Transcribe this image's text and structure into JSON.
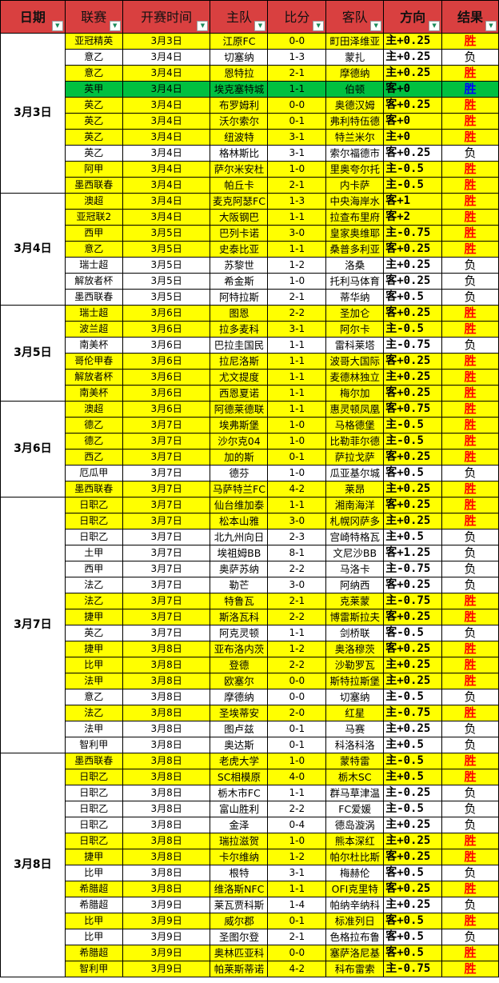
{
  "colors": {
    "header": "#D94040",
    "yellow": "#FFFF00",
    "white": "#FFFFFF",
    "green": "#00C040",
    "win": "#FF0000",
    "win_green_row": "#0000FF",
    "lose": "#000000"
  },
  "headers": [
    "日期",
    "联赛",
    "开赛时间",
    "主队",
    "比分",
    "客队",
    "方向",
    "结果"
  ],
  "filter_icon": "dropdown-arrow-icon",
  "groups": [
    {
      "date": "3月3日",
      "rows": [
        [
          "亚冠精英",
          "3月3日",
          "江原FC",
          "0-0",
          "町田泽维亚",
          "主+0.25",
          "胜",
          "y"
        ],
        [
          "意乙",
          "3月4日",
          "切塞纳",
          "1-3",
          "蒙扎",
          "主+0.25",
          "负",
          "w"
        ],
        [
          "意乙",
          "3月4日",
          "恩特拉",
          "2-1",
          "摩德纳",
          "主+0.25",
          "胜",
          "y"
        ],
        [
          "英甲",
          "3月4日",
          "埃克塞特城",
          "1-1",
          "伯顿",
          "客+0",
          "胜",
          "g"
        ],
        [
          "英乙",
          "3月4日",
          "布罗姆利",
          "0-0",
          "奥德汉姆",
          "客+0.25",
          "胜",
          "y"
        ],
        [
          "英乙",
          "3月4日",
          "沃尔索尔",
          "0-1",
          "弗利特伍德",
          "客+0",
          "胜",
          "y"
        ],
        [
          "英乙",
          "3月4日",
          "纽波特",
          "3-1",
          "特兰米尔",
          "主+0",
          "胜",
          "y"
        ],
        [
          "英乙",
          "3月4日",
          "格林斯比",
          "3-1",
          "索尔福德市",
          "客+0.25",
          "负",
          "w"
        ],
        [
          "阿甲",
          "3月4日",
          "萨尔米安杜",
          "1-0",
          "里奥夸尔托",
          "主-0.5",
          "胜",
          "y"
        ],
        [
          "墨西联春",
          "3月4日",
          "帕丘卡",
          "2-1",
          "内卡萨",
          "主-0.5",
          "胜",
          "y"
        ]
      ]
    },
    {
      "date": "3月4日",
      "rows": [
        [
          "澳超",
          "3月4日",
          "麦克阿瑟FC",
          "1-3",
          "中央海岸水",
          "客+1",
          "胜",
          "y"
        ],
        [
          "亚冠联2",
          "3月4日",
          "大阪钢巴",
          "1-1",
          "拉查布里府",
          "客+2",
          "胜",
          "y"
        ],
        [
          "西甲",
          "3月5日",
          "巴列卡诺",
          "3-0",
          "皇家奥维耶",
          "主-0.75",
          "胜",
          "y"
        ],
        [
          "意乙",
          "3月5日",
          "史泰比亚",
          "1-1",
          "桑普多利亚",
          "客+0.25",
          "胜",
          "y"
        ],
        [
          "瑞士超",
          "3月5日",
          "苏黎世",
          "1-2",
          "洛桑",
          "主+0.25",
          "负",
          "w"
        ],
        [
          "解放者杯",
          "3月5日",
          "希金斯",
          "1-0",
          "托利马体育",
          "客+0.25",
          "负",
          "w"
        ],
        [
          "墨西联春",
          "3月5日",
          "阿特拉斯",
          "2-1",
          "蒂华纳",
          "客+0.5",
          "负",
          "w"
        ]
      ]
    },
    {
      "date": "3月5日",
      "rows": [
        [
          "瑞士超",
          "3月6日",
          "图恩",
          "2-2",
          "圣加仑",
          "客+0.25",
          "胜",
          "y"
        ],
        [
          "波兰超",
          "3月6日",
          "拉多麦科",
          "3-1",
          "阿尔卡",
          "主-0.5",
          "胜",
          "y"
        ],
        [
          "南美杯",
          "3月6日",
          "巴拉圭国民",
          "1-1",
          "雷科莱塔",
          "主-0.75",
          "负",
          "w"
        ],
        [
          "哥伦甲春",
          "3月6日",
          "拉尼洛斯",
          "1-1",
          "波哥大国际",
          "客+0.25",
          "胜",
          "y"
        ],
        [
          "解放者杯",
          "3月6日",
          "尤文提度",
          "1-1",
          "麦德林独立",
          "主+0.25",
          "胜",
          "y"
        ],
        [
          "南美杯",
          "3月6日",
          "西恩夏诺",
          "1-1",
          "梅尔加",
          "客+0.25",
          "胜",
          "y"
        ]
      ]
    },
    {
      "date": "3月6日",
      "rows": [
        [
          "澳超",
          "3月6日",
          "阿德莱德联",
          "1-1",
          "惠灵顿凤凰",
          "客+0.75",
          "胜",
          "y"
        ],
        [
          "德乙",
          "3月7日",
          "埃弗斯堡",
          "1-0",
          "马格德堡",
          "主-0.5",
          "胜",
          "y"
        ],
        [
          "德乙",
          "3月7日",
          "沙尔克04",
          "1-0",
          "比勒菲尔德",
          "主-0.5",
          "胜",
          "y"
        ],
        [
          "西乙",
          "3月7日",
          "加的斯",
          "0-1",
          "萨拉戈萨",
          "客+0.25",
          "胜",
          "y"
        ],
        [
          "厄瓜甲",
          "3月7日",
          "德芬",
          "1-0",
          "瓜亚基尔城",
          "客+0.5",
          "负",
          "w"
        ],
        [
          "墨西联春",
          "3月7日",
          "马萨特兰FC",
          "4-2",
          "莱昂",
          "主+0.25",
          "胜",
          "y"
        ]
      ]
    },
    {
      "date": "3月7日",
      "rows": [
        [
          "日职乙",
          "3月7日",
          "仙台维加泰",
          "1-1",
          "湘南海洋",
          "客+0.25",
          "胜",
          "y"
        ],
        [
          "日职乙",
          "3月7日",
          "松本山雅",
          "3-0",
          "札幌冈萨多",
          "主+0.25",
          "胜",
          "y"
        ],
        [
          "日职乙",
          "3月7日",
          "北九州向日",
          "2-3",
          "宫崎特格瓦",
          "主+0.5",
          "负",
          "w"
        ],
        [
          "土甲",
          "3月7日",
          "埃祖姆BB",
          "8-1",
          "文尼沙BB",
          "客+1.25",
          "负",
          "w"
        ],
        [
          "西甲",
          "3月7日",
          "奥萨苏纳",
          "2-2",
          "马洛卡",
          "主-0.75",
          "负",
          "w"
        ],
        [
          "法乙",
          "3月7日",
          "勒芒",
          "3-0",
          "阿纳西",
          "客+0.25",
          "负",
          "w"
        ],
        [
          "法乙",
          "3月7日",
          "特鲁瓦",
          "2-1",
          "克莱蒙",
          "主-0.75",
          "胜",
          "y"
        ],
        [
          "捷甲",
          "3月7日",
          "斯洛瓦科",
          "2-2",
          "博雷斯拉夫",
          "客+0.25",
          "胜",
          "y"
        ],
        [
          "英乙",
          "3月7日",
          "阿克灵顿",
          "1-1",
          "剑桥联",
          "客-0.5",
          "负",
          "w"
        ],
        [
          "捷甲",
          "3月8日",
          "亚布洛内茨",
          "1-2",
          "奥洛穆茨",
          "客+0.25",
          "胜",
          "y"
        ],
        [
          "比甲",
          "3月8日",
          "登德",
          "2-2",
          "沙勒罗瓦",
          "主+0.25",
          "胜",
          "y"
        ],
        [
          "法甲",
          "3月8日",
          "欧塞尔",
          "0-0",
          "斯特拉斯堡",
          "主+0.25",
          "胜",
          "y"
        ],
        [
          "意乙",
          "3月8日",
          "摩德纳",
          "0-0",
          "切塞纳",
          "主-0.5",
          "负",
          "w"
        ],
        [
          "法乙",
          "3月8日",
          "圣埃蒂安",
          "2-0",
          "红星",
          "主-0.75",
          "胜",
          "y"
        ],
        [
          "法甲",
          "3月8日",
          "图卢兹",
          "0-1",
          "马赛",
          "主+0.25",
          "负",
          "w"
        ],
        [
          "智利甲",
          "3月8日",
          "奥达斯",
          "0-1",
          "科洛科洛",
          "主+0.5",
          "负",
          "w"
        ]
      ]
    },
    {
      "date": "3月8日",
      "rows": [
        [
          "墨西联春",
          "3月8日",
          "老虎大学",
          "1-0",
          "蒙特雷",
          "主-0.5",
          "胜",
          "y"
        ],
        [
          "日职乙",
          "3月8日",
          "SC相模原",
          "4-0",
          "栃木SC",
          "主+0.5",
          "胜",
          "y"
        ],
        [
          "日职乙",
          "3月8日",
          "栃木市FC",
          "1-1",
          "群马草津温",
          "主-0.25",
          "负",
          "w"
        ],
        [
          "日职乙",
          "3月8日",
          "富山胜利",
          "2-2",
          "FC爱媛",
          "主-0.5",
          "负",
          "w"
        ],
        [
          "日职乙",
          "3月8日",
          "金泽",
          "0-4",
          "德岛漩涡",
          "主+0.25",
          "负",
          "w"
        ],
        [
          "日职乙",
          "3月8日",
          "瑞拉滋贺",
          "1-0",
          "熊本深红",
          "主+0.25",
          "胜",
          "y"
        ],
        [
          "捷甲",
          "3月8日",
          "卡尔维纳",
          "1-2",
          "帕尔杜比斯",
          "客+0.25",
          "胜",
          "y"
        ],
        [
          "比甲",
          "3月8日",
          "根特",
          "3-1",
          "梅赫伦",
          "客+0.5",
          "负",
          "w"
        ],
        [
          "希腊超",
          "3月8日",
          "维洛斯NFC",
          "1-1",
          "OFI克里特",
          "客+0.25",
          "胜",
          "y"
        ],
        [
          "希腊超",
          "3月9日",
          "莱瓦贾科斯",
          "1-4",
          "帕纳辛纳科",
          "主+0.25",
          "负",
          "w"
        ],
        [
          "比甲",
          "3月9日",
          "威尔郡",
          "0-1",
          "标准列日",
          "客+0.5",
          "胜",
          "y"
        ],
        [
          "比甲",
          "3月9日",
          "圣图尔登",
          "2-1",
          "色格拉布鲁",
          "客+0.5",
          "负",
          "w"
        ],
        [
          "希腊超",
          "3月9日",
          "奥林匹亚科",
          "0-0",
          "塞萨洛尼基",
          "客+0.5",
          "胜",
          "y"
        ],
        [
          "智利甲",
          "3月9日",
          "帕莱斯蒂诺",
          "4-2",
          "科布雷索",
          "主-0.75",
          "胜",
          "y"
        ]
      ]
    }
  ]
}
